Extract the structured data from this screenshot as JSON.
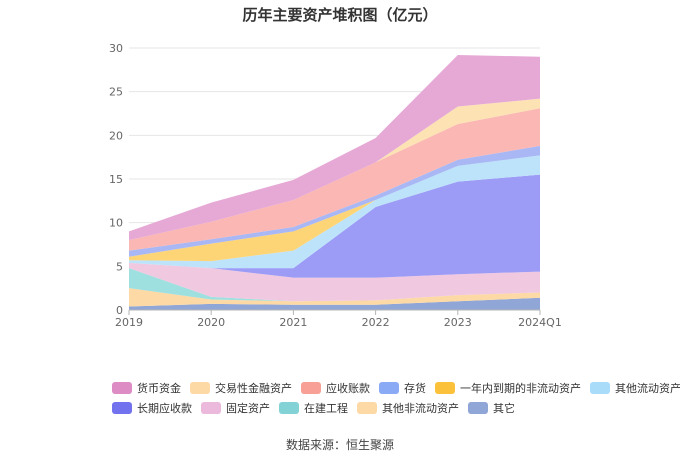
{
  "chart_data": {
    "type": "area",
    "stacked": true,
    "title": "历年主要资产堆积图（亿元）",
    "categories": [
      "2019",
      "2020",
      "2021",
      "2022",
      "2023",
      "2024Q1"
    ],
    "ylim": [
      0,
      30
    ],
    "yticks": [
      0,
      5,
      10,
      15,
      20,
      25,
      30
    ],
    "grid": true,
    "legend_position": "bottom",
    "series": [
      {
        "name": "其它",
        "color": "#8fa6d6",
        "values": [
          0.4,
          0.7,
          0.6,
          0.6,
          1.0,
          1.4
        ]
      },
      {
        "name": "其他非流动资产",
        "color": "#fdd9a6",
        "values": [
          2.1,
          0.5,
          0.4,
          0.5,
          0.7,
          0.6
        ]
      },
      {
        "name": "在建工程",
        "color": "#9edfe0",
        "values": [
          2.3,
          0.3,
          0.0,
          0.0,
          0.0,
          0.0
        ]
      },
      {
        "name": "固定资产",
        "color": "#f0c8e0",
        "values": [
          0.6,
          3.3,
          2.7,
          2.6,
          2.4,
          2.4
        ]
      },
      {
        "name": "长期应收款",
        "color": "#9c9cf6",
        "values": [
          0.0,
          0.0,
          1.1,
          8.1,
          10.6,
          11.1
        ]
      },
      {
        "name": "其他流动资产",
        "color": "#bde3fa",
        "values": [
          0.3,
          0.8,
          2.0,
          0.8,
          1.8,
          2.2
        ]
      },
      {
        "name": "一年内到期的非流动资产",
        "color": "#fdd577",
        "values": [
          0.4,
          2.0,
          2.2,
          0.0,
          0.0,
          0.0
        ]
      },
      {
        "name": "存货",
        "color": "#a9b8f5",
        "values": [
          0.7,
          0.5,
          0.5,
          0.5,
          0.7,
          1.1
        ]
      },
      {
        "name": "应收账款",
        "color": "#fbb7b3",
        "values": [
          1.2,
          2.0,
          3.1,
          3.8,
          4.1,
          4.3
        ]
      },
      {
        "name": "交易性金融资产",
        "color": "#fde2b4",
        "values": [
          0.0,
          0.0,
          0.0,
          0.0,
          2.0,
          1.1
        ]
      },
      {
        "name": "货币资金",
        "color": "#e6a9d6",
        "values": [
          1.0,
          2.2,
          2.3,
          2.8,
          5.9,
          4.8
        ]
      }
    ],
    "legend_order": [
      "货币资金",
      "交易性金融资产",
      "应收账款",
      "存货",
      "一年内到期的非流动资产",
      "其他流动资产",
      "长期应收款",
      "固定资产",
      "在建工程",
      "其他非流动资产",
      "其它"
    ],
    "legend_colors": [
      "#de8cc4",
      "#fdd9a6",
      "#f8a095",
      "#8aaaf5",
      "#fcc13a",
      "#a9dcf9",
      "#7272ee",
      "#eab9dc",
      "#82d2d6",
      "#fdd9a6",
      "#8fa6d6"
    ],
    "source": "数据来源：恒生聚源"
  }
}
